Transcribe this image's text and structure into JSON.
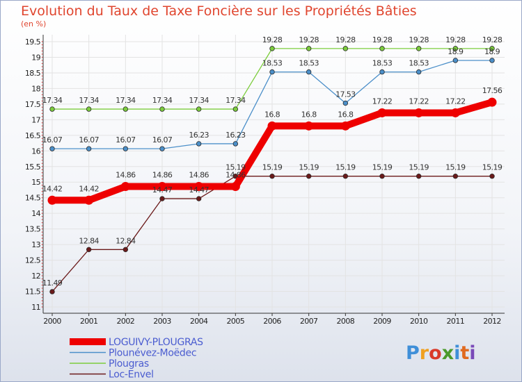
{
  "chart_data": {
    "type": "line",
    "title": "Evolution du Taux de Taxe Foncière sur les Propriétés Bâties",
    "ylabel": "(en %)",
    "xlabel": "",
    "ylim": [
      11,
      19.5
    ],
    "y_ticks": [
      "11",
      "11.5",
      "12",
      "12.5",
      "13",
      "13.5",
      "14",
      "14.5",
      "15",
      "15.5",
      "16",
      "16.5",
      "17",
      "17.5",
      "18",
      "18.5",
      "19",
      "19.5"
    ],
    "categories": [
      "2000",
      "2001",
      "2002",
      "2003",
      "2004",
      "2005",
      "2006",
      "2007",
      "2008",
      "2009",
      "2010",
      "2011",
      "2012"
    ],
    "legend_position": "bottom-left",
    "series": [
      {
        "name": "LOGUIVY-PLOUGRAS",
        "color": "#ee0000",
        "emphasis": true,
        "values": [
          14.42,
          14.42,
          14.86,
          14.86,
          14.86,
          14.86,
          16.8,
          16.8,
          16.8,
          17.22,
          17.22,
          17.22,
          17.56
        ],
        "labels": [
          "14.42",
          "14.42",
          "14.86",
          "14.86",
          "14.86",
          "14.86",
          "16.8",
          "16.8",
          "16.8",
          "17.22",
          "17.22",
          "17.22",
          "17.56"
        ]
      },
      {
        "name": "Plounévez-Moëdec",
        "color": "#4b8fc9",
        "emphasis": false,
        "values": [
          16.07,
          16.07,
          16.07,
          16.07,
          16.23,
          16.23,
          18.53,
          18.53,
          17.53,
          18.53,
          18.53,
          18.9,
          18.9
        ],
        "labels": [
          "16.07",
          "16.07",
          "16.07",
          "16.07",
          "16.23",
          "16.23",
          "18.53",
          "18.53",
          "17.53",
          "18.53",
          "18.53",
          "18.9",
          "18.9"
        ]
      },
      {
        "name": "Plougras",
        "color": "#7ccd3c",
        "emphasis": false,
        "values": [
          17.34,
          17.34,
          17.34,
          17.34,
          17.34,
          17.34,
          19.28,
          19.28,
          19.28,
          19.28,
          19.28,
          19.28,
          19.28
        ],
        "labels": [
          "17.34",
          "17.34",
          "17.34",
          "17.34",
          "17.34",
          "17.34",
          "19.28",
          "19.28",
          "19.28",
          "19.28",
          "19.28",
          "19.28",
          "19.28"
        ]
      },
      {
        "name": "Loc-Envel",
        "color": "#6b1a1a",
        "emphasis": false,
        "values": [
          11.49,
          12.84,
          12.84,
          14.47,
          14.47,
          15.19,
          15.19,
          15.19,
          15.19,
          15.19,
          15.19,
          15.19,
          15.19
        ],
        "labels": [
          "11.49",
          "12.84",
          "12.84",
          "14.47",
          "14.47",
          "15.19",
          "15.19",
          "15.19",
          "15.19",
          "15.19",
          "15.19",
          "15.19",
          "15.19"
        ]
      }
    ]
  },
  "brand": {
    "letters": [
      "P",
      "r",
      "o",
      "x",
      "i",
      "t",
      "i"
    ],
    "colors": [
      "#3f8fd8",
      "#f0a020",
      "#d93a2a",
      "#4a9a2a",
      "#3f8fd8",
      "#e06a20",
      "#7a4ab8"
    ]
  }
}
